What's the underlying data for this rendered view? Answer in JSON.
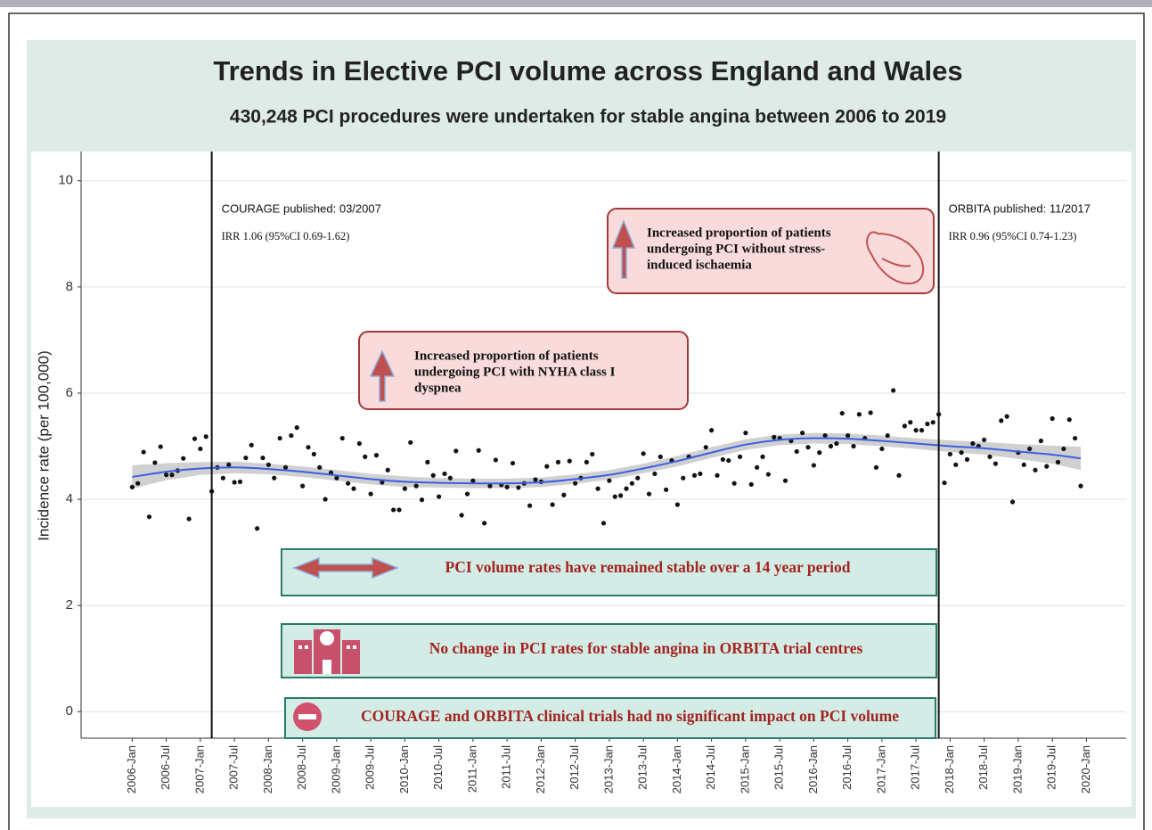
{
  "chart_data": {
    "type": "scatter",
    "title": "Trends in Elective PCI volume across England and Wales",
    "subtitle": "430,248 PCI procedures were undertaken for stable angina between 2006 to 2019",
    "y_label": "Incidence rate (per 100,000)",
    "color": "#111111",
    "x": [
      "2006-01",
      "2006-02",
      "2006-03",
      "2006-04",
      "2006-05",
      "2006-06",
      "2006-07",
      "2006-08",
      "2006-09",
      "2006-10",
      "2006-11",
      "2006-12",
      "2007-01",
      "2007-02",
      "2007-03",
      "2007-04",
      "2007-05",
      "2007-06",
      "2007-07",
      "2007-08",
      "2007-09",
      "2007-10",
      "2007-11",
      "2007-12",
      "2008-01",
      "2008-02",
      "2008-03",
      "2008-04",
      "2008-05",
      "2008-06",
      "2008-07",
      "2008-08",
      "2008-09",
      "2008-10",
      "2008-11",
      "2008-12",
      "2009-01",
      "2009-02",
      "2009-03",
      "2009-04",
      "2009-05",
      "2009-06",
      "2009-07",
      "2009-08",
      "2009-09",
      "2009-10",
      "2009-11",
      "2009-12",
      "2010-01",
      "2010-02",
      "2010-03",
      "2010-04",
      "2010-05",
      "2010-06",
      "2010-07",
      "2010-08",
      "2010-09",
      "2010-10",
      "2010-11",
      "2010-12",
      "2011-01",
      "2011-02",
      "2011-03",
      "2011-04",
      "2011-05",
      "2011-06",
      "2011-07",
      "2011-08",
      "2011-09",
      "2011-10",
      "2011-11",
      "2011-12",
      "2012-01",
      "2012-02",
      "2012-03",
      "2012-04",
      "2012-05",
      "2012-06",
      "2012-07",
      "2012-08",
      "2012-09",
      "2012-10",
      "2012-11",
      "2012-12",
      "2013-01",
      "2013-02",
      "2013-03",
      "2013-04",
      "2013-05",
      "2013-06",
      "2013-07",
      "2013-08",
      "2013-09",
      "2013-10",
      "2013-11",
      "2013-12",
      "2014-01",
      "2014-02",
      "2014-03",
      "2014-04",
      "2014-05",
      "2014-06",
      "2014-07",
      "2014-08",
      "2014-09",
      "2014-10",
      "2014-11",
      "2014-12",
      "2015-01",
      "2015-02",
      "2015-03",
      "2015-04",
      "2015-05",
      "2015-06",
      "2015-07",
      "2015-08",
      "2015-09",
      "2015-10",
      "2015-11",
      "2015-12",
      "2016-01",
      "2016-02",
      "2016-03",
      "2016-04",
      "2016-05",
      "2016-06",
      "2016-07",
      "2016-08",
      "2016-09",
      "2016-10",
      "2016-11",
      "2016-12",
      "2017-01",
      "2017-02",
      "2017-03",
      "2017-04",
      "2017-05",
      "2017-06",
      "2017-07",
      "2017-08",
      "2017-09",
      "2017-10",
      "2017-11",
      "2017-12",
      "2018-01",
      "2018-02",
      "2018-03",
      "2018-04",
      "2018-05",
      "2018-06",
      "2018-07",
      "2018-08",
      "2018-09",
      "2018-10",
      "2018-11",
      "2018-12",
      "2019-01",
      "2019-02",
      "2019-03",
      "2019-04",
      "2019-05",
      "2019-06",
      "2019-07",
      "2019-08",
      "2019-09",
      "2019-10",
      "2019-11",
      "2019-12"
    ],
    "values": [
      4.23,
      4.3,
      4.89,
      3.67,
      4.69,
      4.99,
      4.46,
      4.46,
      4.54,
      4.77,
      3.63,
      5.14,
      4.95,
      5.18,
      4.15,
      4.6,
      4.4,
      4.65,
      4.32,
      4.33,
      4.78,
      5.02,
      3.45,
      4.78,
      4.65,
      4.4,
      5.15,
      4.6,
      5.2,
      5.35,
      4.25,
      4.98,
      4.85,
      4.6,
      4.0,
      4.5,
      4.4,
      5.15,
      4.3,
      4.2,
      5.05,
      4.8,
      4.1,
      4.83,
      4.32,
      4.55,
      3.8,
      3.8,
      4.2,
      5.07,
      4.25,
      3.99,
      4.7,
      4.45,
      4.05,
      4.48,
      4.4,
      4.91,
      3.7,
      4.1,
      4.35,
      4.92,
      3.55,
      4.25,
      4.74,
      4.27,
      4.23,
      4.68,
      4.22,
      4.3,
      3.88,
      4.37,
      4.33,
      4.62,
      3.9,
      4.7,
      4.08,
      4.72,
      4.3,
      4.4,
      4.7,
      4.85,
      4.2,
      3.55,
      4.35,
      4.05,
      4.07,
      4.2,
      4.3,
      4.4,
      4.86,
      4.1,
      4.48,
      4.8,
      4.18,
      4.73,
      3.9,
      4.4,
      4.8,
      4.45,
      4.48,
      4.98,
      5.3,
      4.45,
      4.75,
      4.73,
      4.3,
      4.8,
      5.25,
      4.28,
      4.6,
      4.8,
      4.47,
      5.17,
      5.15,
      4.35,
      5.1,
      4.9,
      5.25,
      4.98,
      4.64,
      4.88,
      5.2,
      5.0,
      5.05,
      5.62,
      5.2,
      5.0,
      5.6,
      5.15,
      5.63,
      4.6,
      4.95,
      5.2,
      6.05,
      4.45,
      5.38,
      5.45,
      5.3,
      5.3,
      5.42,
      5.45,
      5.6,
      4.31,
      4.85,
      4.65,
      4.88,
      4.75,
      5.05,
      5.0,
      5.12,
      4.8,
      4.67,
      5.48,
      5.56,
      3.95,
      4.88,
      4.65,
      4.95,
      4.55,
      5.1,
      4.62,
      5.52,
      4.7,
      4.95,
      5.5,
      5.15,
      4.25
    ],
    "trend": {
      "color": "#3a5fe5",
      "band_color": "#c8c8c8",
      "x": [
        "2006-01",
        "2006-07",
        "2007-01",
        "2007-07",
        "2008-01",
        "2008-07",
        "2009-01",
        "2009-07",
        "2010-01",
        "2010-07",
        "2011-01",
        "2011-07",
        "2012-01",
        "2012-07",
        "2013-01",
        "2013-07",
        "2014-01",
        "2014-07",
        "2015-01",
        "2015-07",
        "2016-01",
        "2016-07",
        "2017-01",
        "2017-07",
        "2018-01",
        "2018-07",
        "2019-01",
        "2019-07",
        "2019-12"
      ],
      "values": [
        4.42,
        4.52,
        4.58,
        4.6,
        4.57,
        4.52,
        4.45,
        4.38,
        4.33,
        4.31,
        4.3,
        4.3,
        4.32,
        4.38,
        4.46,
        4.58,
        4.72,
        4.88,
        5.03,
        5.12,
        5.15,
        5.14,
        5.1,
        5.05,
        5.0,
        4.96,
        4.9,
        4.84,
        4.77
      ],
      "low": [
        4.2,
        4.36,
        4.46,
        4.49,
        4.47,
        4.42,
        4.35,
        4.28,
        4.23,
        4.22,
        4.21,
        4.21,
        4.23,
        4.29,
        4.37,
        4.49,
        4.62,
        4.78,
        4.93,
        5.02,
        5.05,
        5.04,
        5.0,
        4.95,
        4.89,
        4.84,
        4.76,
        4.67,
        4.55
      ],
      "high": [
        4.64,
        4.68,
        4.7,
        4.71,
        4.67,
        4.62,
        4.55,
        4.48,
        4.43,
        4.4,
        4.39,
        4.39,
        4.41,
        4.47,
        4.55,
        4.67,
        4.82,
        4.98,
        5.13,
        5.22,
        5.25,
        5.24,
        5.2,
        5.15,
        5.11,
        5.08,
        5.04,
        5.01,
        4.99
      ]
    },
    "xlim": [
      "2005-04",
      "2020-08"
    ],
    "xticks": [
      {
        "value": "2006-01",
        "label": "2006-Jan"
      },
      {
        "value": "2006-07",
        "label": "2006-Jul"
      },
      {
        "value": "2007-01",
        "label": "2007-Jan"
      },
      {
        "value": "2007-07",
        "label": "2007-Jul"
      },
      {
        "value": "2008-01",
        "label": "2008-Jan"
      },
      {
        "value": "2008-07",
        "label": "2008-Jul"
      },
      {
        "value": "2009-01",
        "label": "2009-Jan"
      },
      {
        "value": "2009-07",
        "label": "2009-Jul"
      },
      {
        "value": "2010-01",
        "label": "2010-Jan"
      },
      {
        "value": "2010-07",
        "label": "2010-Jul"
      },
      {
        "value": "2011-01",
        "label": "2011-Jan"
      },
      {
        "value": "2011-07",
        "label": "2011-Jul"
      },
      {
        "value": "2012-01",
        "label": "2012-Jan"
      },
      {
        "value": "2012-07",
        "label": "2012-Jul"
      },
      {
        "value": "2013-01",
        "label": "2013-Jan"
      },
      {
        "value": "2013-07",
        "label": "2013-Jul"
      },
      {
        "value": "2014-01",
        "label": "2014-Jan"
      },
      {
        "value": "2014-07",
        "label": "2014-Jul"
      },
      {
        "value": "2015-01",
        "label": "2015-Jan"
      },
      {
        "value": "2015-07",
        "label": "2015-Jul"
      },
      {
        "value": "2016-01",
        "label": "2016-Jan"
      },
      {
        "value": "2016-07",
        "label": "2016-Jul"
      },
      {
        "value": "2017-01",
        "label": "2017-Jan"
      },
      {
        "value": "2017-07",
        "label": "2017-Jul"
      },
      {
        "value": "2018-01",
        "label": "2018-Jan"
      },
      {
        "value": "2018-07",
        "label": "2018-Jul"
      },
      {
        "value": "2019-01",
        "label": "2019-Jan"
      },
      {
        "value": "2019-07",
        "label": "2019-Jul"
      },
      {
        "value": "2020-01",
        "label": "2020-Jan"
      }
    ],
    "ylim": [
      -0.5,
      10.55
    ],
    "yticks": [
      0,
      2,
      4,
      6,
      8,
      10
    ],
    "grid": true,
    "vlines": [
      {
        "x": "2007-03",
        "label": "COURAGE published: 03/2007",
        "note": "IRR 1.06 (95%CI 0.69-1.62)"
      },
      {
        "x": "2017-11",
        "label": "ORBITA published: 11/2017",
        "note": "IRR 0.96 (95%CI 0.74-1.23)"
      }
    ],
    "callouts": [
      {
        "lines": [
          "Increased proportion of patients",
          "undergoing PCI without stress-",
          "induced ischaemia"
        ]
      },
      {
        "lines": [
          "Increased proportion of patients",
          "undergoing PCI with  NYHA class I",
          "dyspnea"
        ]
      },
      {
        "lines": [
          "PCI volume rates have remained stable over a 14 year period"
        ]
      },
      {
        "lines": [
          "No change in PCI rates for stable angina in ORBITA trial centres"
        ]
      },
      {
        "lines": [
          "COURAGE and ORBITA clinical trials had no significant impact on PCI volume"
        ]
      }
    ]
  }
}
